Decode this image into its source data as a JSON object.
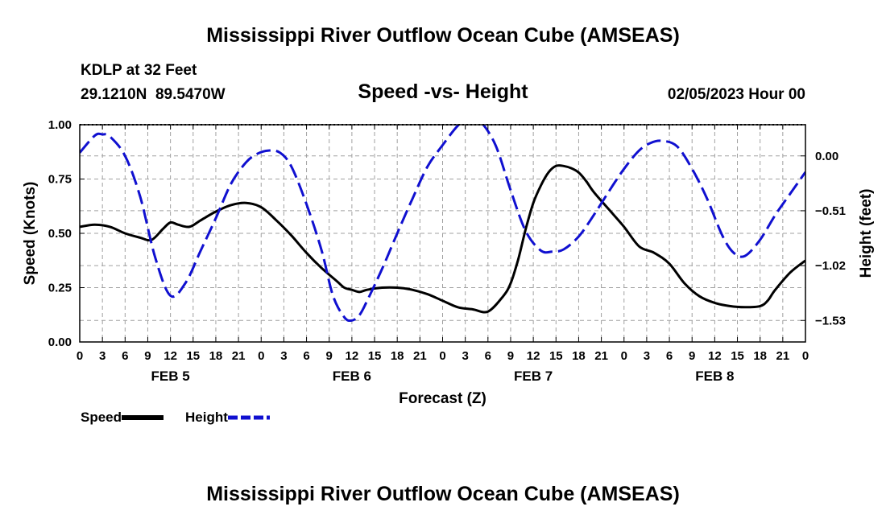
{
  "titles": {
    "main": "Mississippi River Outflow Ocean Cube (AMSEAS)",
    "bottom": "Mississippi River Outflow Ocean Cube (AMSEAS)"
  },
  "header": {
    "station": "KDLP at 32 Feet",
    "coords": "29.1210N  89.5470W",
    "subtitle": "Speed -vs- Height",
    "datetime": "02/05/2023 Hour 00"
  },
  "legend": {
    "speed": "Speed",
    "height": "Height"
  },
  "colors": {
    "speed": "#000000",
    "height": "#1010d0",
    "grid": "#a0a0a0"
  },
  "chart_data": {
    "type": "line",
    "xlabel": "Forecast (Z)",
    "ylabel": "Speed (Knots)",
    "y2label": "Height (feet)",
    "x_range_hours": [
      0,
      96
    ],
    "ylim": [
      0,
      1
    ],
    "y2lim": [
      -1.73,
      0.29
    ],
    "x_tick_labels": [
      "0",
      "3",
      "6",
      "9",
      "12",
      "15",
      "18",
      "21",
      "0",
      "3",
      "6",
      "9",
      "12",
      "15",
      "18",
      "21",
      "0",
      "3",
      "6",
      "9",
      "12",
      "15",
      "18",
      "21",
      "0",
      "3",
      "6",
      "9",
      "12",
      "15",
      "18",
      "21",
      "0"
    ],
    "day_labels": [
      {
        "hour": 12,
        "label": "FEB 5"
      },
      {
        "hour": 36,
        "label": "FEB 6"
      },
      {
        "hour": 60,
        "label": "FEB 7"
      },
      {
        "hour": 84,
        "label": "FEB 8"
      }
    ],
    "y_ticks": [
      {
        "value": 0,
        "label": "0.00"
      },
      {
        "value": 0.25,
        "label": "0.25"
      },
      {
        "value": 0.5,
        "label": "0.50"
      },
      {
        "value": 0.75,
        "label": "0.75"
      },
      {
        "value": 1,
        "label": "1.00"
      }
    ],
    "y2_ticks": [
      {
        "value": 0,
        "label": "0.00"
      },
      {
        "value": -0.51,
        "label": "−0.51"
      },
      {
        "value": -1.02,
        "label": "−1.02"
      },
      {
        "value": -1.53,
        "label": "−1.53"
      }
    ],
    "series": [
      {
        "name": "Speed",
        "axis": "left",
        "style": "solid",
        "x": [
          0,
          2,
          4,
          6,
          8,
          9.5,
          11,
          12,
          13,
          14.5,
          16,
          18,
          20,
          22,
          24,
          26,
          28,
          30,
          32,
          34,
          35,
          36,
          37,
          38,
          40,
          42,
          44,
          46,
          48,
          50,
          52,
          54,
          56,
          57,
          58,
          59,
          60,
          61,
          62,
          63,
          64,
          65,
          66,
          67,
          68,
          70,
          72,
          74,
          76,
          78,
          80,
          82,
          84,
          86,
          88,
          90,
          91,
          92,
          94,
          96
        ],
        "values": [
          0.53,
          0.54,
          0.53,
          0.5,
          0.48,
          0.47,
          0.52,
          0.55,
          0.54,
          0.53,
          0.56,
          0.6,
          0.63,
          0.64,
          0.62,
          0.56,
          0.49,
          0.41,
          0.34,
          0.28,
          0.25,
          0.24,
          0.23,
          0.24,
          0.25,
          0.25,
          0.24,
          0.22,
          0.19,
          0.16,
          0.15,
          0.14,
          0.21,
          0.27,
          0.38,
          0.52,
          0.64,
          0.72,
          0.78,
          0.81,
          0.81,
          0.8,
          0.78,
          0.74,
          0.69,
          0.61,
          0.53,
          0.44,
          0.41,
          0.36,
          0.27,
          0.21,
          0.18,
          0.165,
          0.16,
          0.165,
          0.19,
          0.24,
          0.32,
          0.375
        ]
      },
      {
        "name": "Height",
        "axis": "right",
        "style": "dashed",
        "x": [
          0,
          2,
          3,
          4,
          6,
          8,
          10,
          12,
          14,
          16,
          18,
          20,
          22,
          23.5,
          25,
          26.5,
          28,
          30,
          32,
          33.5,
          35,
          36,
          37,
          38,
          40,
          42,
          44,
          46,
          48,
          50,
          51.5,
          53,
          55,
          57,
          59,
          61,
          62.5,
          64,
          66,
          68,
          70,
          72,
          74,
          75.5,
          77,
          79,
          81,
          83,
          85,
          86.5,
          88,
          90,
          92,
          94,
          96
        ],
        "values": [
          0.03,
          0.19,
          0.2,
          0.18,
          0.0,
          -0.38,
          -0.95,
          -1.3,
          -1.18,
          -0.88,
          -0.58,
          -0.26,
          -0.06,
          0.02,
          0.05,
          0.03,
          -0.1,
          -0.45,
          -0.88,
          -1.3,
          -1.5,
          -1.53,
          -1.48,
          -1.35,
          -1.05,
          -0.72,
          -0.4,
          -0.1,
          0.1,
          0.28,
          0.35,
          0.32,
          0.1,
          -0.32,
          -0.7,
          -0.88,
          -0.89,
          -0.87,
          -0.75,
          -0.55,
          -0.33,
          -0.12,
          0.05,
          0.12,
          0.14,
          0.09,
          -0.12,
          -0.4,
          -0.74,
          -0.9,
          -0.93,
          -0.78,
          -0.55,
          -0.35,
          -0.15
        ]
      }
    ]
  }
}
